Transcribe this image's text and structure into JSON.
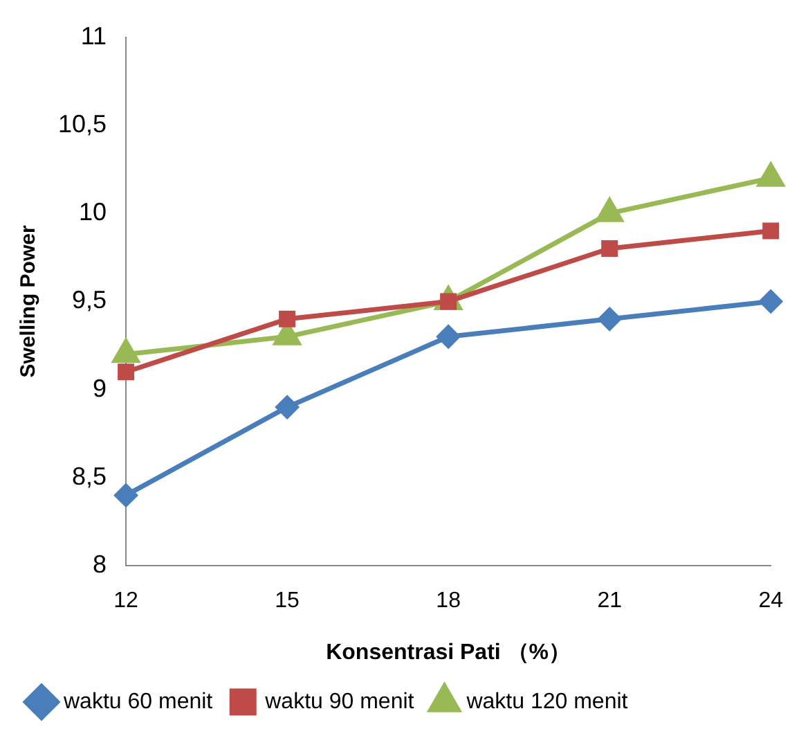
{
  "chart_data": {
    "type": "line",
    "xlabel": "Konsentrasi Pati （%）",
    "ylabel": "Swelling Power",
    "categories": [
      "12",
      "15",
      "18",
      "21",
      "24"
    ],
    "series": [
      {
        "name": "waktu 60 menit",
        "color": "#4a7ebb",
        "marker": "diamond",
        "values": [
          8.4,
          8.9,
          9.3,
          9.4,
          9.5
        ]
      },
      {
        "name": "waktu 90 menit",
        "color": "#be4b48",
        "marker": "square",
        "values": [
          9.1,
          9.4,
          9.5,
          9.8,
          9.9
        ]
      },
      {
        "name": "waktu 120 menit",
        "color": "#98b954",
        "marker": "triangle",
        "values": [
          9.2,
          9.3,
          9.5,
          10.0,
          10.2
        ]
      }
    ],
    "ylim": [
      8,
      11
    ],
    "yticks": [
      8,
      {
        "value": 8.5,
        "label": "8,5"
      },
      9,
      {
        "value": 9.5,
        "label": "9,5"
      },
      10,
      {
        "value": 10.5,
        "label": "10,5"
      },
      11
    ],
    "grid": false,
    "legend": "bottom"
  }
}
